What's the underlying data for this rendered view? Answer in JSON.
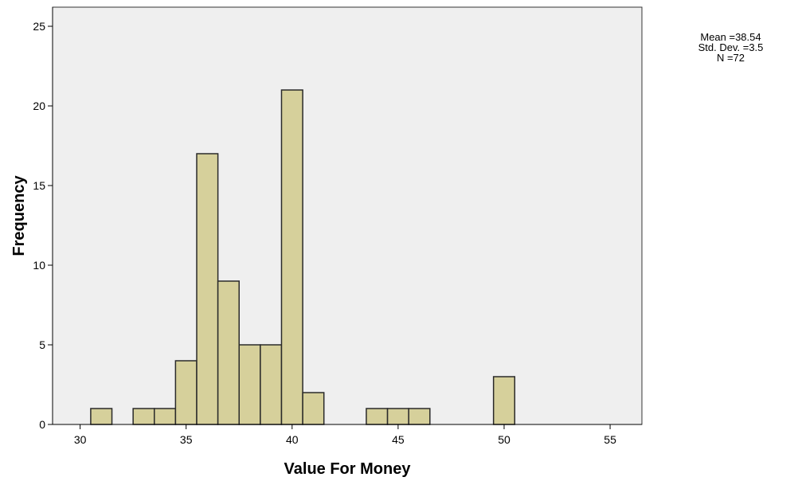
{
  "chart_data": {
    "type": "bar",
    "xlabel": "Value For Money",
    "ylabel": "Frequency",
    "xlim": [
      28.7,
      56.5
    ],
    "ylim": [
      0,
      26.2
    ],
    "x_ticks": [
      30,
      35,
      40,
      45,
      50,
      55
    ],
    "y_ticks": [
      0,
      5,
      10,
      15,
      20,
      25
    ],
    "bin_width": 1,
    "bins": [
      {
        "x": 31,
        "count": 1
      },
      {
        "x": 33,
        "count": 1
      },
      {
        "x": 34,
        "count": 1
      },
      {
        "x": 35,
        "count": 4
      },
      {
        "x": 36,
        "count": 17
      },
      {
        "x": 37,
        "count": 9
      },
      {
        "x": 38,
        "count": 5
      },
      {
        "x": 39,
        "count": 5
      },
      {
        "x": 40,
        "count": 21
      },
      {
        "x": 41,
        "count": 2
      },
      {
        "x": 44,
        "count": 1
      },
      {
        "x": 45,
        "count": 1
      },
      {
        "x": 46,
        "count": 1
      },
      {
        "x": 50,
        "count": 3
      }
    ],
    "grid": false,
    "colors": {
      "plot_background": "#efefef",
      "bar_fill": "#d6d09b",
      "bar_stroke": "#2a2a2a"
    }
  },
  "stats": {
    "mean": "Mean =38.54",
    "std_dev": "Std. Dev. =3.5",
    "n": "N =72"
  }
}
